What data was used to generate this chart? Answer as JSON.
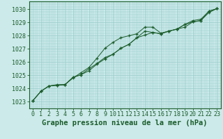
{
  "background_color": "#cceaea",
  "grid_color": "#99cccc",
  "line_color": "#1a5c2a",
  "marker_color": "#1a5c2a",
  "xlabel": "Graphe pression niveau de la mer (hPa)",
  "xlabel_fontsize": 7.5,
  "tick_fontsize": 6,
  "ytick_labels": [
    1023,
    1024,
    1025,
    1026,
    1027,
    1028,
    1029,
    1030
  ],
  "ylim": [
    1022.5,
    1030.6
  ],
  "xlim": [
    -0.5,
    23.5
  ],
  "series1": [
    1023.1,
    1023.8,
    1024.2,
    1024.3,
    1024.3,
    1024.8,
    1025.2,
    1025.6,
    1026.3,
    1027.05,
    1027.5,
    1027.85,
    1028.0,
    1028.15,
    1028.65,
    1028.65,
    1028.2,
    1028.35,
    1028.5,
    1028.65,
    1029.05,
    1029.15,
    1029.85,
    1030.05
  ],
  "series2": [
    1023.1,
    1023.8,
    1024.2,
    1024.25,
    1024.3,
    1024.85,
    1025.05,
    1025.5,
    1025.9,
    1026.35,
    1026.6,
    1027.05,
    1027.35,
    1027.85,
    1028.35,
    1028.25,
    1028.15,
    1028.35,
    1028.5,
    1028.85,
    1029.05,
    1029.15,
    1029.75,
    1030.05
  ],
  "series3": [
    1023.1,
    1023.8,
    1024.2,
    1024.25,
    1024.3,
    1024.85,
    1025.05,
    1025.35,
    1025.85,
    1026.25,
    1026.6,
    1027.05,
    1027.35,
    1027.85,
    1028.05,
    1028.25,
    1028.15,
    1028.35,
    1028.5,
    1028.85,
    1029.15,
    1029.25,
    1029.85,
    1030.05
  ]
}
